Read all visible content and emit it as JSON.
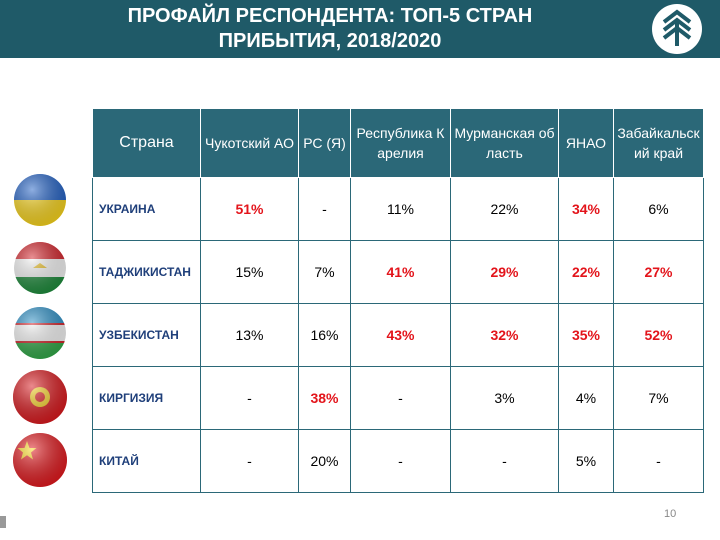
{
  "header": {
    "title": "ПРОФАЙЛ РЕСПОНДЕНТА: ТОП-5 СТРАН ПРИБЫТИЯ, 2018/2020"
  },
  "table": {
    "columns": [
      "Страна",
      "Чукотский АО",
      "РС (Я)",
      "Республика Карелия",
      "Мурманская область",
      "ЯНАО",
      "Забайкальский край"
    ],
    "highlight_color": "#e3141b",
    "rows": [
      {
        "country": "УКРАИНА",
        "cells": [
          "51%",
          "-",
          "11%",
          "22%",
          "34%",
          "6%"
        ],
        "highlighted": [
          true,
          false,
          false,
          false,
          true,
          false
        ]
      },
      {
        "country": "ТАДЖИКИСТАН",
        "cells": [
          "15%",
          "7%",
          "41%",
          "29%",
          "22%",
          "27%"
        ],
        "highlighted": [
          false,
          false,
          true,
          true,
          true,
          true
        ]
      },
      {
        "country": "УЗБЕКИСТАН",
        "cells": [
          "13%",
          "16%",
          "43%",
          "32%",
          "35%",
          "52%"
        ],
        "highlighted": [
          false,
          false,
          true,
          true,
          true,
          true
        ]
      },
      {
        "country": "КИРГИЗИЯ",
        "cells": [
          "-",
          "38%",
          "-",
          "3%",
          "4%",
          "7%"
        ],
        "highlighted": [
          false,
          true,
          false,
          false,
          false,
          false
        ]
      },
      {
        "country": "КИТАЙ",
        "cells": [
          "-",
          "20%",
          "-",
          "-",
          "5%",
          "-"
        ],
        "highlighted": [
          false,
          false,
          false,
          false,
          false,
          false
        ]
      }
    ]
  },
  "footer": {
    "page": "10"
  }
}
